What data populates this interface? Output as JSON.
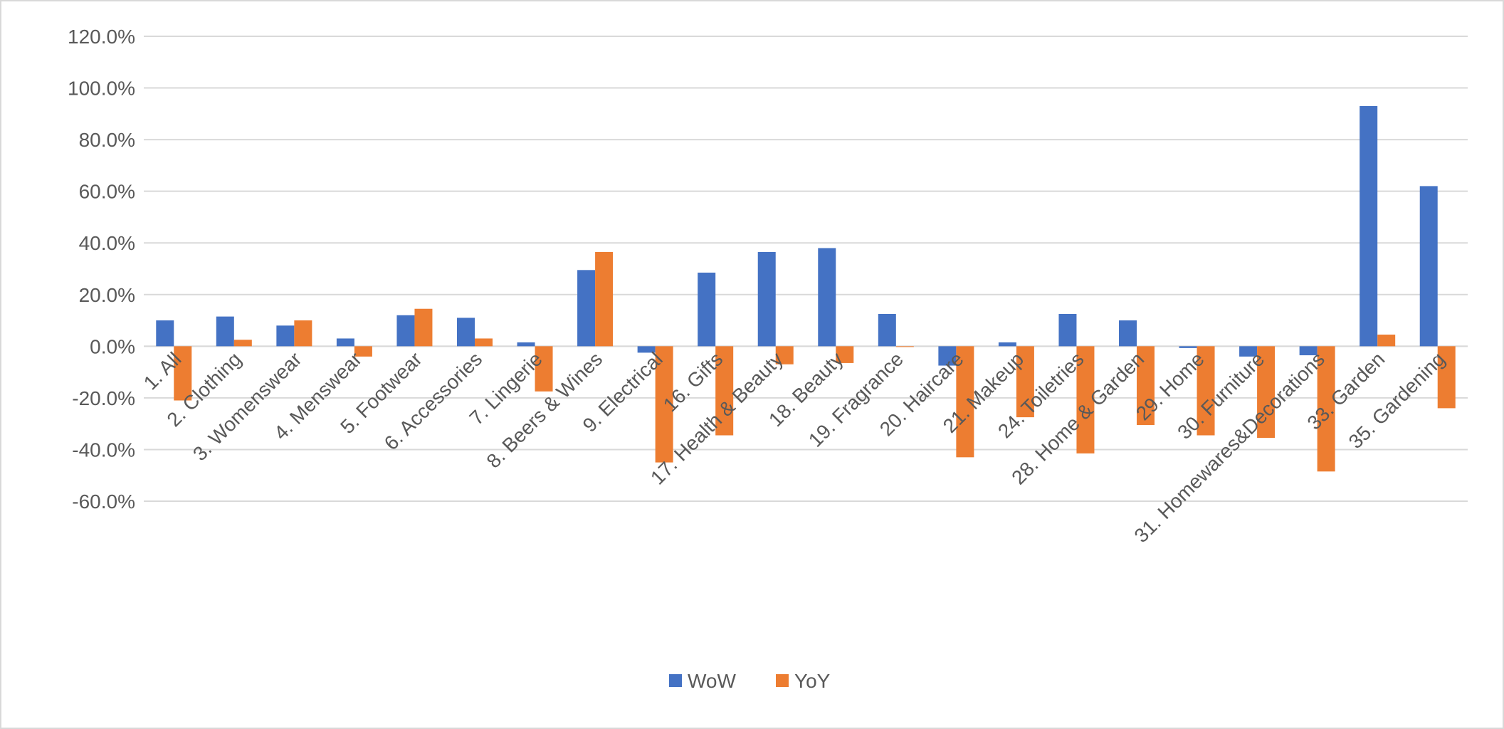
{
  "chart_data": {
    "type": "bar",
    "title": "",
    "xlabel": "",
    "ylabel": "",
    "ylim": [
      -60,
      120
    ],
    "yticks": [
      -60,
      -40,
      -20,
      0,
      20,
      40,
      60,
      80,
      100,
      120
    ],
    "ytick_labels": [
      "-60.0%",
      "-40.0%",
      "-20.0%",
      "0.0%",
      "20.0%",
      "40.0%",
      "60.0%",
      "80.0%",
      "100.0%",
      "120.0%"
    ],
    "grid": true,
    "legend_position": "bottom",
    "categories": [
      "1. All",
      "2. Clothing",
      "3. Womenswear",
      "4. Menswear",
      "5. Footwear",
      "6. Accessories",
      "7. Lingerie",
      "8. Beers & Wines",
      "9. Electrical",
      "16. Gifts",
      "17. Health & Beauty",
      "18. Beauty",
      "19. Fragrance",
      "20. Haircare",
      "21. Makeup",
      "24. Toiletries",
      "28. Home & Garden",
      "29. Home",
      "30. Furniture",
      "31. Homewares&Decorations",
      "33. Garden",
      "35. Gardening"
    ],
    "series": [
      {
        "name": "WoW",
        "color": "#4472C4",
        "values": [
          10.0,
          11.5,
          8.0,
          3.0,
          12.0,
          11.0,
          1.5,
          29.5,
          -2.5,
          28.5,
          36.5,
          38.0,
          12.5,
          -7.5,
          1.5,
          12.5,
          10.0,
          -0.7,
          -4.0,
          -3.5,
          93.0,
          62.0
        ]
      },
      {
        "name": "YoY",
        "color": "#ED7D31",
        "values": [
          -21.0,
          2.5,
          10.0,
          -4.0,
          14.5,
          3.0,
          -17.5,
          36.5,
          -45.0,
          -34.5,
          -7.0,
          -6.5,
          -0.3,
          -43.0,
          -27.5,
          -41.5,
          -30.5,
          -34.5,
          -35.5,
          -48.5,
          4.5,
          -24.0
        ]
      }
    ]
  }
}
